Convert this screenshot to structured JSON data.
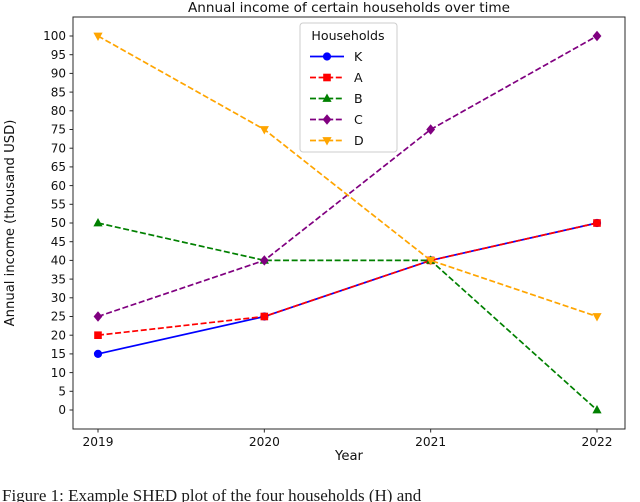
{
  "figure": {
    "title": "Annual income of certain households over time",
    "caption_text": "Figure 1: Example SHED plot of the four households (H) and"
  },
  "chart_data": {
    "type": "line",
    "title": "Annual income of certain households over time",
    "xlabel": "Year",
    "ylabel": "Annual income (thousand USD)",
    "x": [
      2019,
      2020,
      2021,
      2022
    ],
    "xtick_labels": [
      "2019",
      "2020",
      "2021",
      "2022"
    ],
    "yticks": [
      0,
      5,
      10,
      15,
      20,
      25,
      30,
      35,
      40,
      45,
      50,
      55,
      60,
      65,
      70,
      75,
      80,
      85,
      90,
      95,
      100
    ],
    "ylim": [
      -5,
      105
    ],
    "grid": false,
    "legend": {
      "title": "Households",
      "position": "upper-center",
      "entries": [
        "K",
        "A",
        "B",
        "C",
        "D"
      ]
    },
    "series": [
      {
        "name": "K",
        "values": [
          15,
          25,
          40,
          50
        ],
        "color": "#0000ff",
        "line_style": "solid",
        "marker": "circle"
      },
      {
        "name": "A",
        "values": [
          20,
          25,
          40,
          50
        ],
        "color": "#ff0000",
        "line_style": "dashed",
        "marker": "square"
      },
      {
        "name": "B",
        "values": [
          50,
          40,
          40,
          0
        ],
        "color": "#008000",
        "line_style": "dashed",
        "marker": "triangle-up"
      },
      {
        "name": "C",
        "values": [
          25,
          40,
          75,
          100
        ],
        "color": "#800080",
        "line_style": "dashed",
        "marker": "diamond"
      },
      {
        "name": "D",
        "values": [
          100,
          75,
          40,
          25
        ],
        "color": "#ffa500",
        "line_style": "dashed",
        "marker": "triangle-down"
      }
    ],
    "colors": {
      "spine": "#2a2a2a",
      "tick_text": "#111111",
      "legend_border": "#cccccc",
      "background": "#ffffff"
    }
  }
}
